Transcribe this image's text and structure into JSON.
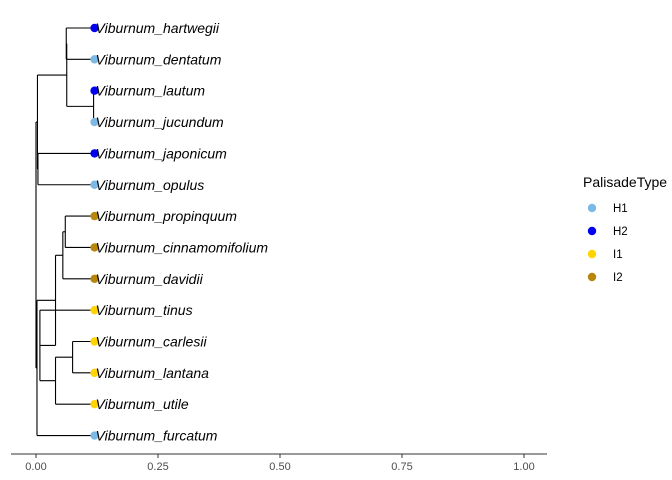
{
  "chart_data": {
    "type": "phylogenetic-tree",
    "title": "",
    "xlabel": "",
    "ylabel": "",
    "xlim": [
      0,
      1
    ],
    "x_ticks": [
      0,
      0.25,
      0.5,
      0.75,
      1
    ],
    "x_tick_labels": [
      "0.00",
      "0.25",
      "0.50",
      "0.75",
      "1.00"
    ],
    "grid": false,
    "legend": {
      "title": "PalisadeType",
      "placement": "right",
      "entries": [
        {
          "label": "H1",
          "color": "#7cb9e4"
        },
        {
          "label": "H2",
          "color": "#0000ee"
        },
        {
          "label": "I1",
          "color": "#ffd400"
        },
        {
          "label": "I2",
          "color": "#b8860b"
        }
      ]
    },
    "tips": [
      {
        "label": "Viburnum_hartwegii",
        "type": "H2",
        "x": 0.12
      },
      {
        "label": "Viburnum_dentatum",
        "type": "H1",
        "x": 0.12
      },
      {
        "label": "Viburnum_lautum",
        "type": "H2",
        "x": 0.12
      },
      {
        "label": "Viburnum_jucundum",
        "type": "H1",
        "x": 0.12
      },
      {
        "label": "Viburnum_japonicum",
        "type": "H2",
        "x": 0.12
      },
      {
        "label": "Viburnum_opulus",
        "type": "H1",
        "x": 0.12
      },
      {
        "label": "Viburnum_propinquum",
        "type": "I2",
        "x": 0.12
      },
      {
        "label": "Viburnum_cinnamomifolium",
        "type": "I2",
        "x": 0.12
      },
      {
        "label": "Viburnum_davidii",
        "type": "I2",
        "x": 0.12
      },
      {
        "label": "Viburnum_tinus",
        "type": "I1",
        "x": 0.12
      },
      {
        "label": "Viburnum_carlesii",
        "type": "I1",
        "x": 0.12
      },
      {
        "label": "Viburnum_lantana",
        "type": "I1",
        "x": 0.12
      },
      {
        "label": "Viburnum_utile",
        "type": "I1",
        "x": 0.12
      },
      {
        "label": "Viburnum_furcatum",
        "type": "H1",
        "x": 0.12
      }
    ],
    "nodes": [
      {
        "x": 0.0,
        "children": [
          1,
          2
        ]
      },
      {
        "x": 0.003,
        "children": [
          3,
          4
        ]
      },
      {
        "x": 0.002,
        "children": [
          5,
          "Viburnum_furcatum"
        ]
      },
      {
        "x": 0.063,
        "children": [
          6,
          7
        ]
      },
      {
        "x": 0.004,
        "children": [
          "Viburnum_japonicum",
          "Viburnum_opulus"
        ]
      },
      {
        "x": 0.04,
        "children": [
          8,
          9
        ]
      },
      {
        "x": 0.062,
        "children": [
          "Viburnum_hartwegii",
          "Viburnum_dentatum"
        ]
      },
      {
        "x": 0.118,
        "children": [
          "Viburnum_lautum",
          "Viburnum_jucundum"
        ]
      },
      {
        "x": 0.055,
        "children": [
          10,
          "Viburnum_davidii"
        ]
      },
      {
        "x": 0.008,
        "children": [
          11,
          "Viburnum_tinus"
        ]
      },
      {
        "x": 0.06,
        "children": [
          "Viburnum_propinquum",
          "Viburnum_cinnamomifolium"
        ]
      },
      {
        "x": 0.04,
        "children": [
          12,
          "Viburnum_utile"
        ]
      },
      {
        "x": 0.075,
        "children": [
          "Viburnum_carlesii",
          "Viburnum_lantana"
        ]
      }
    ]
  }
}
